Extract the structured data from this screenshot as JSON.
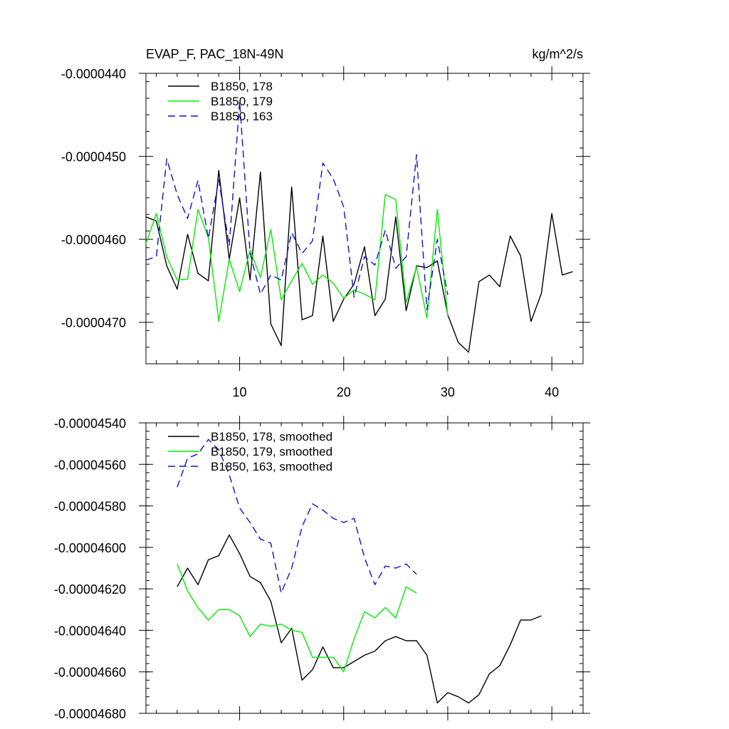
{
  "chart_data": [
    {
      "type": "line",
      "title": "EVAP_F, PAC_18N-49N",
      "units": "kg/m^2/s",
      "xlim": [
        1,
        43
      ],
      "ylim": [
        -4.75e-05,
        -4.4e-05
      ],
      "xticks": [
        10,
        20,
        30,
        40
      ],
      "xtick_labels": [
        "10",
        "20",
        "30",
        "40"
      ],
      "yticks": [
        -4.4e-05,
        -4.5e-05,
        -4.6e-05,
        -4.7e-05
      ],
      "ytick_labels": [
        "-0.0000440",
        "-0.0000450",
        "-0.0000460",
        "-0.0000470"
      ],
      "legend": [
        "B1850, 178",
        "B1850, 179",
        "B1850, 163"
      ],
      "series": [
        {
          "name": "B1850, 178",
          "color": "#000000",
          "dash": "",
          "x_start": 1,
          "values": [
            -4.573e-05,
            -4.578e-05,
            -4.632e-05,
            -4.66e-05,
            -4.594e-05,
            -4.641e-05,
            -4.65e-05,
            -4.517e-05,
            -4.624e-05,
            -4.55e-05,
            -4.649e-05,
            -4.519e-05,
            -4.702e-05,
            -4.728e-05,
            -4.537e-05,
            -4.697e-05,
            -4.692e-05,
            -4.596e-05,
            -4.699e-05,
            -4.672e-05,
            -4.654e-05,
            -4.609e-05,
            -4.692e-05,
            -4.672e-05,
            -4.573e-05,
            -4.686e-05,
            -4.632e-05,
            -4.634e-05,
            -4.626e-05,
            -4.691e-05,
            -4.724e-05,
            -4.736e-05,
            -4.651e-05,
            -4.643e-05,
            -4.657e-05,
            -4.596e-05,
            -4.62e-05,
            -4.699e-05,
            -4.665e-05,
            -4.569e-05,
            -4.643e-05,
            -4.639e-05
          ]
        },
        {
          "name": "B1850, 179",
          "color": "#00ee00",
          "dash": "",
          "x_start": 1,
          "values": [
            -4.605e-05,
            -4.569e-05,
            -4.621e-05,
            -4.649e-05,
            -4.648e-05,
            -4.564e-05,
            -4.598e-05,
            -4.699e-05,
            -4.624e-05,
            -4.663e-05,
            -4.613e-05,
            -4.646e-05,
            -4.588e-05,
            -4.673e-05,
            -4.65e-05,
            -4.629e-05,
            -4.654e-05,
            -4.643e-05,
            -4.653e-05,
            -4.671e-05,
            -4.661e-05,
            -4.666e-05,
            -4.673e-05,
            -4.546e-05,
            -4.552e-05,
            -4.676e-05,
            -4.633e-05,
            -4.695e-05,
            -4.564e-05,
            -4.693e-05
          ]
        },
        {
          "name": "B1850, 163",
          "color": "#1010cc",
          "dash": "10,6",
          "x_start": 1,
          "values": [
            -4.625e-05,
            -4.621e-05,
            -4.503e-05,
            -4.546e-05,
            -4.575e-05,
            -4.529e-05,
            -4.599e-05,
            -4.528e-05,
            -4.608e-05,
            -4.434e-05,
            -4.616e-05,
            -4.666e-05,
            -4.643e-05,
            -4.649e-05,
            -4.592e-05,
            -4.617e-05,
            -4.602e-05,
            -4.508e-05,
            -4.527e-05,
            -4.561e-05,
            -4.67e-05,
            -4.621e-05,
            -4.631e-05,
            -4.589e-05,
            -4.635e-05,
            -4.621e-05,
            -4.498e-05,
            -4.685e-05,
            -4.6e-05,
            -4.667e-05
          ]
        }
      ]
    },
    {
      "type": "line",
      "title": "",
      "xlim": [
        1,
        43
      ],
      "ylim": [
        -4.68e-05,
        -4.54e-05
      ],
      "xticks": [
        10,
        20,
        30,
        40
      ],
      "xtick_labels": [
        "",
        "",
        "",
        ""
      ],
      "yticks": [
        -4.54e-05,
        -4.56e-05,
        -4.58e-05,
        -4.6e-05,
        -4.62e-05,
        -4.64e-05,
        -4.66e-05,
        -4.68e-05
      ],
      "ytick_labels": [
        "-0.00004540",
        "-0.00004560",
        "-0.00004580",
        "-0.00004600",
        "-0.00004620",
        "-0.00004640",
        "-0.00004660",
        "-0.00004680"
      ],
      "legend": [
        "B1850, 178, smoothed",
        "B1850, 179, smoothed",
        "B1850, 163, smoothed"
      ],
      "series": [
        {
          "name": "B1850, 178, smoothed",
          "color": "#000000",
          "dash": "",
          "x_start": 4,
          "values": [
            -4.619e-05,
            -4.61e-05,
            -4.618e-05,
            -4.606e-05,
            -4.604e-05,
            -4.594e-05,
            -4.603e-05,
            -4.614e-05,
            -4.617e-05,
            -4.626e-05,
            -4.646e-05,
            -4.639e-05,
            -4.664e-05,
            -4.659e-05,
            -4.648e-05,
            -4.658e-05,
            -4.658e-05,
            -4.655e-05,
            -4.652e-05,
            -4.65e-05,
            -4.645e-05,
            -4.643e-05,
            -4.645e-05,
            -4.645e-05,
            -4.652e-05,
            -4.675e-05,
            -4.67e-05,
            -4.672e-05,
            -4.675e-05,
            -4.671e-05,
            -4.661e-05,
            -4.657e-05,
            -4.647e-05,
            -4.635e-05,
            -4.635e-05,
            -4.633e-05
          ]
        },
        {
          "name": "B1850, 179, smoothed",
          "color": "#00ee00",
          "dash": "",
          "x_start": 4,
          "values": [
            -4.608e-05,
            -4.621e-05,
            -4.629e-05,
            -4.635e-05,
            -4.63e-05,
            -4.63e-05,
            -4.633e-05,
            -4.643e-05,
            -4.637e-05,
            -4.638e-05,
            -4.637e-05,
            -4.64e-05,
            -4.641e-05,
            -4.653e-05,
            -4.653e-05,
            -4.653e-05,
            -4.66e-05,
            -4.644e-05,
            -4.631e-05,
            -4.634e-05,
            -4.629e-05,
            -4.634e-05,
            -4.619e-05,
            -4.622e-05
          ]
        },
        {
          "name": "B1850, 163, smoothed",
          "color": "#1010cc",
          "dash": "10,6",
          "x_start": 4,
          "values": [
            -4.571e-05,
            -4.557e-05,
            -4.555e-05,
            -4.548e-05,
            -4.553e-05,
            -4.565e-05,
            -4.581e-05,
            -4.588e-05,
            -4.596e-05,
            -4.598e-05,
            -4.622e-05,
            -4.61e-05,
            -4.59e-05,
            -4.579e-05,
            -4.582e-05,
            -4.586e-05,
            -4.588e-05,
            -4.586e-05,
            -4.605e-05,
            -4.618e-05,
            -4.609e-05,
            -4.61e-05,
            -4.608e-05,
            -4.613e-05
          ]
        }
      ]
    }
  ]
}
